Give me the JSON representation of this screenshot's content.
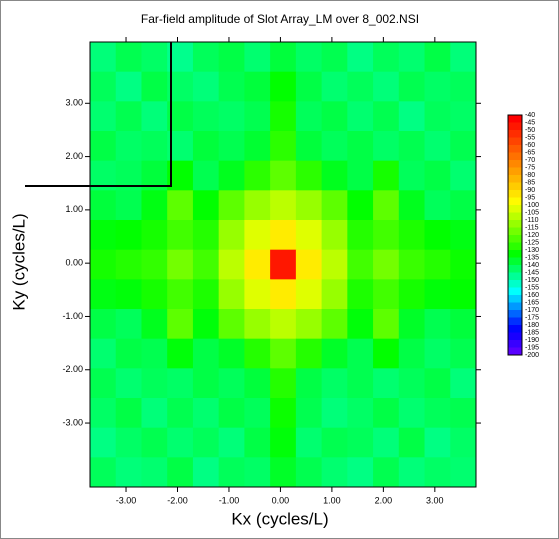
{
  "chart_data": {
    "type": "heatmap",
    "title": "Far-field amplitude of Slot Array_LM over 8_002.NSI",
    "x_label": "Kx (cycles/L)",
    "y_label": "Ky (cycles/L)",
    "xlim": [
      -3.7,
      3.8
    ],
    "ylim": [
      -4.2,
      4.15
    ],
    "xticks": [
      {
        "value": -3,
        "label": "-3.00"
      },
      {
        "value": -2,
        "label": "-2.00"
      },
      {
        "value": -1,
        "label": "-1.00"
      },
      {
        "value": 0,
        "label": "0.00"
      },
      {
        "value": 1,
        "label": "1.00"
      },
      {
        "value": 2,
        "label": "2.00"
      },
      {
        "value": 3,
        "label": "3.00"
      }
    ],
    "yticks": [
      {
        "value": -3,
        "label": "-3.00"
      },
      {
        "value": -2,
        "label": "-2.00"
      },
      {
        "value": -1,
        "label": "-1.00"
      },
      {
        "value": 0,
        "label": "0.00"
      },
      {
        "value": 1,
        "label": "1.00"
      },
      {
        "value": 2,
        "label": "2.00"
      },
      {
        "value": 3,
        "label": "3.00"
      }
    ],
    "colorbar_ticks": [
      -40,
      -45,
      -50,
      -55,
      -60,
      -65,
      -70,
      -75,
      -80,
      -85,
      -90,
      -95,
      -100,
      -105,
      -110,
      -115,
      -120,
      -125,
      -130,
      -135,
      -140,
      -145,
      -150,
      -155,
      -160,
      -165,
      -170,
      -175,
      -180,
      -185,
      -190,
      -195,
      -200
    ],
    "z": [
      [
        -142,
        -138,
        -140,
        -144,
        -139,
        -137,
        -141,
        -136,
        -140,
        -138,
        -143,
        -139,
        -141,
        -137,
        -142
      ],
      [
        -139,
        -143,
        -137,
        -140,
        -142,
        -138,
        -136,
        -130,
        -137,
        -141,
        -139,
        -142,
        -138,
        -140,
        -139
      ],
      [
        -141,
        -138,
        -142,
        -137,
        -139,
        -140,
        -138,
        -128,
        -139,
        -137,
        -141,
        -138,
        -143,
        -139,
        -140
      ],
      [
        -137,
        -140,
        -139,
        -141,
        -136,
        -138,
        -135,
        -125,
        -136,
        -139,
        -137,
        -140,
        -138,
        -141,
        -138
      ],
      [
        -140,
        -139,
        -136,
        -130,
        -138,
        -133,
        -125,
        -118,
        -125,
        -133,
        -137,
        -128,
        -139,
        -137,
        -141
      ],
      [
        -136,
        -138,
        -132,
        -118,
        -130,
        -118,
        -110,
        -105,
        -110,
        -118,
        -130,
        -118,
        -133,
        -139,
        -137
      ],
      [
        -131,
        -130,
        -128,
        -122,
        -126,
        -110,
        -100,
        -92,
        -100,
        -110,
        -126,
        -122,
        -127,
        -130,
        -132
      ],
      [
        -128,
        -126,
        -124,
        -115,
        -122,
        -105,
        -92,
        -45,
        -92,
        -105,
        -122,
        -115,
        -123,
        -126,
        -129
      ],
      [
        -132,
        -131,
        -128,
        -122,
        -127,
        -110,
        -100,
        -92,
        -100,
        -110,
        -127,
        -122,
        -128,
        -131,
        -130
      ],
      [
        -137,
        -139,
        -133,
        -118,
        -131,
        -118,
        -110,
        -105,
        -110,
        -118,
        -131,
        -118,
        -134,
        -138,
        -136
      ],
      [
        -141,
        -137,
        -138,
        -131,
        -137,
        -134,
        -126,
        -118,
        -126,
        -134,
        -138,
        -130,
        -137,
        -140,
        -138
      ],
      [
        -138,
        -141,
        -139,
        -140,
        -137,
        -139,
        -136,
        -126,
        -137,
        -140,
        -138,
        -141,
        -139,
        -137,
        -142
      ],
      [
        -140,
        -137,
        -142,
        -138,
        -141,
        -137,
        -139,
        -129,
        -138,
        -142,
        -140,
        -137,
        -141,
        -139,
        -138
      ],
      [
        -143,
        -140,
        -138,
        -141,
        -139,
        -142,
        -137,
        -131,
        -141,
        -138,
        -139,
        -142,
        -137,
        -143,
        -140
      ],
      [
        -139,
        -142,
        -141,
        -137,
        -143,
        -139,
        -140,
        -134,
        -138,
        -141,
        -143,
        -138,
        -142,
        -140,
        -141
      ]
    ]
  }
}
